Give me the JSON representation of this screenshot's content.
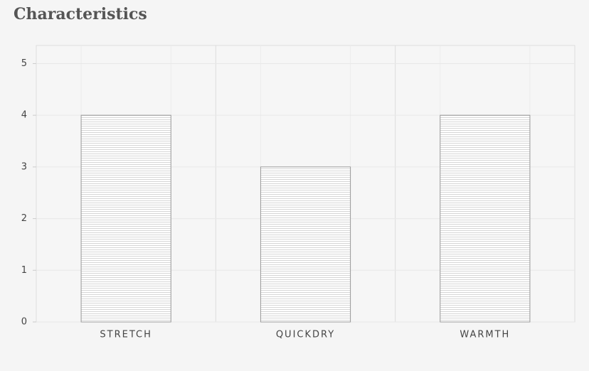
{
  "chart_data": {
    "type": "bar",
    "title": "Characteristics",
    "categories": [
      "STRETCH",
      "QUICKDRY",
      "WARMTH"
    ],
    "values": [
      4,
      3,
      4
    ],
    "color": "#ffffff",
    "ylim": [
      0,
      5.35
    ],
    "yticks": [
      0,
      1,
      2,
      3,
      4,
      5
    ],
    "grid": true
  }
}
